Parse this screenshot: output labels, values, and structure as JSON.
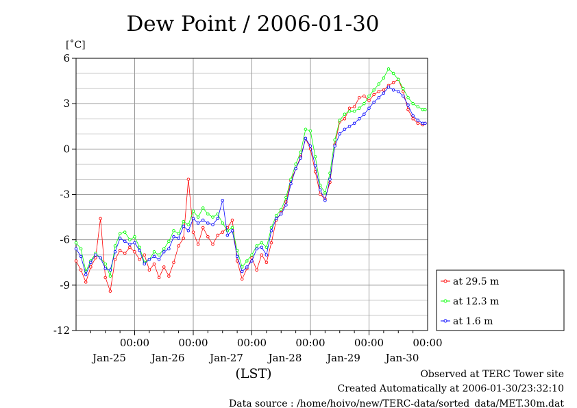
{
  "chart_data": {
    "type": "line",
    "title": "Dew Point / 2006-01-30",
    "ylabel": "[˚C]",
    "xlabel": "(LST)",
    "ylim": [
      -12,
      6
    ],
    "yticks": [
      "6",
      "3",
      "0",
      "-3",
      "-6",
      "-9",
      "-12"
    ],
    "xlim": [
      0,
      144
    ],
    "xticks": [
      {
        "hour": 24,
        "time": "00:00",
        "date": "Jan-25"
      },
      {
        "hour": 48,
        "time": "00:00",
        "date": "Jan-26"
      },
      {
        "hour": 72,
        "time": "00:00",
        "date": "Jan-27"
      },
      {
        "hour": 96,
        "time": "00:00",
        "date": "Jan-28"
      },
      {
        "hour": 120,
        "time": "00:00",
        "date": "Jan-29"
      },
      {
        "hour": 144,
        "time": "00:00",
        "date": "Jan-30"
      }
    ],
    "x_unit": "hours since Jan-24 00:00 (LST)",
    "grid": true,
    "legend_position": "outside right, bottom",
    "series": [
      {
        "name": "at 29.5 m",
        "color": "#ff0000",
        "x": [
          0,
          2,
          4,
          6,
          8,
          10,
          12,
          14,
          16,
          18,
          20,
          22,
          24,
          26,
          28,
          30,
          32,
          34,
          36,
          38,
          40,
          42,
          44,
          46,
          48,
          50,
          52,
          54,
          56,
          58,
          60,
          62,
          64,
          66,
          68,
          70,
          72,
          74,
          76,
          78,
          80,
          82,
          84,
          86,
          88,
          90,
          92,
          94,
          96,
          98,
          100,
          102,
          104,
          106,
          108,
          110,
          112,
          114,
          116,
          118,
          120,
          122,
          124,
          126,
          128,
          130,
          132,
          134,
          136,
          138,
          140,
          142,
          143
        ],
        "y": [
          -7.4,
          -8.0,
          -8.8,
          -7.8,
          -7.2,
          -4.6,
          -8.5,
          -9.4,
          -7.3,
          -6.7,
          -6.9,
          -6.5,
          -6.8,
          -7.3,
          -7.0,
          -8.0,
          -7.6,
          -8.5,
          -7.8,
          -8.4,
          -7.5,
          -6.4,
          -5.9,
          -2.0,
          -5.5,
          -6.3,
          -5.2,
          -5.8,
          -6.3,
          -5.7,
          -5.5,
          -5.2,
          -4.7,
          -7.4,
          -8.6,
          -7.9,
          -7.2,
          -8.0,
          -7.0,
          -7.5,
          -6.2,
          -4.7,
          -4.2,
          -3.5,
          -2.1,
          -1.3,
          -0.5,
          0.7,
          0.0,
          -1.5,
          -3.0,
          -3.3,
          -2.2,
          0.3,
          1.8,
          2.0,
          2.7,
          2.8,
          3.4,
          3.5,
          3.2,
          3.6,
          3.8,
          3.9,
          4.2,
          4.4,
          4.6,
          3.8,
          2.6,
          2.0,
          1.7,
          1.6,
          1.7
        ]
      },
      {
        "name": "at 12.3 m",
        "color": "#00ff00",
        "x": [
          0,
          2,
          4,
          6,
          8,
          10,
          12,
          14,
          16,
          18,
          20,
          22,
          24,
          26,
          28,
          30,
          32,
          34,
          36,
          38,
          40,
          42,
          44,
          46,
          48,
          50,
          52,
          54,
          56,
          58,
          60,
          62,
          64,
          66,
          68,
          70,
          72,
          74,
          76,
          78,
          80,
          82,
          84,
          86,
          88,
          90,
          92,
          94,
          96,
          98,
          100,
          102,
          104,
          106,
          108,
          110,
          112,
          114,
          116,
          118,
          120,
          122,
          124,
          126,
          128,
          130,
          132,
          134,
          136,
          138,
          140,
          142,
          143
        ],
        "y": [
          -6.2,
          -6.6,
          -8.1,
          -7.4,
          -6.9,
          -7.2,
          -7.6,
          -8.4,
          -6.4,
          -5.6,
          -5.5,
          -6.0,
          -5.8,
          -6.5,
          -7.5,
          -7.3,
          -6.8,
          -7.0,
          -6.6,
          -6.1,
          -5.4,
          -5.6,
          -4.8,
          -5.0,
          -4.1,
          -4.5,
          -3.9,
          -4.3,
          -4.5,
          -4.3,
          -4.9,
          -5.4,
          -5.2,
          -6.7,
          -7.8,
          -7.4,
          -7.0,
          -6.4,
          -6.2,
          -6.5,
          -5.2,
          -4.4,
          -4.0,
          -3.2,
          -2.0,
          -1.0,
          -0.2,
          1.3,
          1.2,
          -0.5,
          -2.4,
          -2.9,
          -1.6,
          0.6,
          1.9,
          2.3,
          2.5,
          2.5,
          2.7,
          3.0,
          3.5,
          3.9,
          4.3,
          4.7,
          5.3,
          5.0,
          4.6,
          4.0,
          3.4,
          3.0,
          2.8,
          2.6,
          2.6
        ]
      },
      {
        "name": "at 1.6 m",
        "color": "#0000ff",
        "x": [
          0,
          2,
          4,
          6,
          8,
          10,
          12,
          14,
          16,
          18,
          20,
          22,
          24,
          26,
          28,
          30,
          32,
          34,
          36,
          38,
          40,
          42,
          44,
          46,
          48,
          50,
          52,
          54,
          56,
          58,
          60,
          62,
          64,
          66,
          68,
          70,
          72,
          74,
          76,
          78,
          80,
          82,
          84,
          86,
          88,
          90,
          92,
          94,
          96,
          98,
          100,
          102,
          104,
          106,
          108,
          110,
          112,
          114,
          116,
          118,
          120,
          122,
          124,
          126,
          128,
          130,
          132,
          134,
          136,
          138,
          140,
          142,
          143
        ],
        "y": [
          -6.6,
          -7.1,
          -8.3,
          -7.5,
          -7.0,
          -7.2,
          -7.9,
          -8.0,
          -6.8,
          -5.9,
          -6.1,
          -6.3,
          -6.2,
          -6.7,
          -7.6,
          -7.3,
          -7.1,
          -7.3,
          -6.8,
          -6.6,
          -5.8,
          -5.9,
          -5.1,
          -5.4,
          -4.6,
          -4.9,
          -4.7,
          -4.9,
          -5.0,
          -4.6,
          -3.4,
          -5.7,
          -5.4,
          -7.1,
          -8.1,
          -7.8,
          -7.4,
          -6.6,
          -6.5,
          -7.0,
          -5.4,
          -4.6,
          -4.3,
          -3.7,
          -2.3,
          -1.3,
          -0.6,
          0.7,
          0.2,
          -1.1,
          -2.7,
          -3.4,
          -2.0,
          0.2,
          1.0,
          1.3,
          1.5,
          1.7,
          2.0,
          2.3,
          2.7,
          3.1,
          3.4,
          3.7,
          4.1,
          3.9,
          3.8,
          3.5,
          2.9,
          2.2,
          1.9,
          1.7,
          1.7
        ]
      }
    ]
  },
  "footer": {
    "line1": "Observed at TERC Tower site",
    "line2": "Created Automatically at 2006-01-30/23:32:10",
    "line3": "Data source : /home/hoivo/new/TERC-data/sorted_data/MET.30m.dat"
  }
}
